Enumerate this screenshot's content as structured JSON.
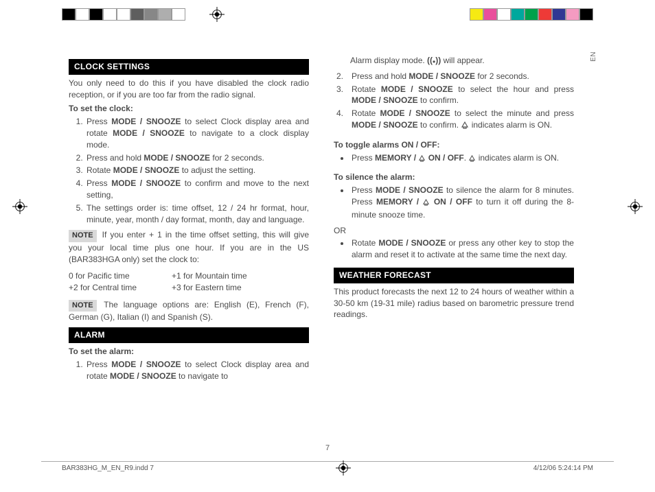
{
  "meta": {
    "page_number": "7",
    "footer_left": "BAR383HG_M_EN_R9.indd   7",
    "footer_right": "4/12/06   5:24:14 PM",
    "lang_side": "EN"
  },
  "colorbars": {
    "left": [
      "#000000",
      "#ffffff",
      "#000000",
      "#ffffff",
      "#ffffff",
      "#5e5e5e",
      "#878787",
      "#aeaeae",
      "#ffffff"
    ],
    "right": [
      "#f6ea13",
      "#e94f9c",
      "#ffffff",
      "#00a89d",
      "#00a14b",
      "#ee3a37",
      "#313893",
      "#f49bc1",
      "#000000"
    ]
  },
  "sections": {
    "clock": {
      "header": "CLOCK SETTINGS",
      "intro": "You only need to do this if you have disabled the clock radio reception, or if you are too far from the radio signal.",
      "subhead": "To set the clock",
      "steps": [
        "Press MODE / SNOOZE to select Clock display area and rotate MODE / SNOOZE to navigate to a clock display mode.",
        "Press and hold MODE / SNOOZE for 2 seconds.",
        "Rotate MODE / SNOOZE to adjust the setting.",
        "Press MODE / SNOOZE to confirm and move to the next setting,",
        "The settings order is: time offset, 12 / 24 hr format, hour, minute, year, month / day format, month, day and language."
      ],
      "note1": "If you enter + 1 in the time offset setting, this will give you your local time plus one hour. If you are in the US (BAR383HGA only) set the clock to:",
      "tz": [
        [
          "0 for Pacific time",
          "+1 for Mountain time"
        ],
        [
          "+2 for Central time",
          "+3 for Eastern time"
        ]
      ],
      "note2": "The language options are: English (E), French (F), German (G), Italian (I) and Spanish (S)."
    },
    "alarm": {
      "header": "ALARM",
      "subhead": "To set the alarm",
      "step1": "Press MODE / SNOOZE to select Clock display area and rotate MODE / SNOOZE to navigate to",
      "cont_top": "Alarm display mode. ((•)) will appear.",
      "steps_rest": [
        "Press and hold MODE / SNOOZE for 2 seconds.",
        "Rotate MODE / SNOOZE to select the hour and press MODE / SNOOZE to confirm.",
        "Rotate MODE / SNOOZE to select the minute and press MODE / SNOOZE to confirm. ◇ indicates alarm is ON."
      ],
      "toggle_head": "To toggle alarms ON / OFF",
      "toggle_item": "Press MEMORY / ◇ ON / OFF. ◇ indicates alarm is ON.",
      "silence_head": "To silence the alarm",
      "silence1": "Press MODE / SNOOZE to silence the alarm for 8 minutes. Press MEMORY / ◇ ON / OFF to turn it off during the 8-minute snooze time.",
      "or": "OR",
      "silence2": "Rotate MODE / SNOOZE or press any other key to stop the alarm and reset it to activate at the same time the next day."
    },
    "weather": {
      "header": "WEATHER FORECAST",
      "body": "This product forecasts the next 12 to 24 hours of weather within a 30-50 km (19-31 mile) radius based on barometric pressure trend readings."
    }
  },
  "labels": {
    "note": "NOTE"
  }
}
